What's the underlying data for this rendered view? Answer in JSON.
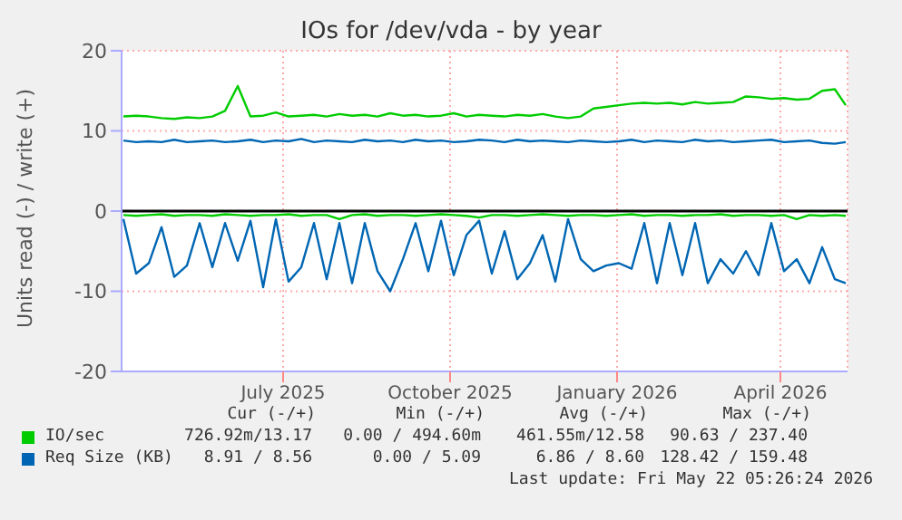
{
  "chart_data": {
    "type": "line",
    "title": "IOs for /dev/vda - by year",
    "ylabel": "Units read (-) / write (+)",
    "x": [
      "2025-04-18",
      "2025-04-25",
      "2025-05-02",
      "2025-05-09",
      "2025-05-16",
      "2025-05-23",
      "2025-05-30",
      "2025-06-06",
      "2025-06-13",
      "2025-06-20",
      "2025-06-27",
      "2025-07-04",
      "2025-07-11",
      "2025-07-18",
      "2025-07-25",
      "2025-08-01",
      "2025-08-08",
      "2025-08-15",
      "2025-08-22",
      "2025-08-29",
      "2025-09-05",
      "2025-09-12",
      "2025-09-19",
      "2025-09-26",
      "2025-10-03",
      "2025-10-10",
      "2025-10-17",
      "2025-10-24",
      "2025-10-31",
      "2025-11-07",
      "2025-11-14",
      "2025-11-21",
      "2025-11-28",
      "2025-12-05",
      "2025-12-12",
      "2025-12-19",
      "2025-12-26",
      "2026-01-02",
      "2026-01-09",
      "2026-01-16",
      "2026-01-23",
      "2026-01-30",
      "2026-02-06",
      "2026-02-13",
      "2026-02-20",
      "2026-02-27",
      "2026-03-06",
      "2026-03-13",
      "2026-03-20",
      "2026-03-27",
      "2026-04-03",
      "2026-04-10",
      "2026-04-17",
      "2026-04-24",
      "2026-05-01",
      "2026-05-08",
      "2026-05-15",
      "2026-05-21"
    ],
    "series": [
      {
        "name": "IO/sec",
        "color": "#00cc00",
        "values": [
          11.8,
          11.9,
          11.8,
          11.6,
          11.5,
          11.7,
          11.6,
          11.8,
          12.5,
          15.6,
          11.8,
          11.9,
          12.3,
          11.8,
          11.9,
          12.0,
          11.8,
          12.1,
          11.9,
          12.0,
          11.8,
          12.2,
          11.9,
          12.0,
          11.8,
          11.9,
          12.2,
          11.8,
          12.0,
          11.9,
          11.8,
          12.0,
          11.9,
          12.1,
          11.8,
          11.6,
          11.8,
          12.8,
          13.0,
          13.2,
          13.4,
          13.5,
          13.4,
          13.5,
          13.3,
          13.6,
          13.4,
          13.5,
          13.6,
          14.3,
          14.2,
          14.0,
          14.1,
          13.9,
          14.0,
          15.0,
          15.2,
          13.2
        ]
      },
      {
        "color": "#00cc00",
        "values": [
          -0.5,
          -0.6,
          -0.5,
          -0.4,
          -0.6,
          -0.5,
          -0.5,
          -0.6,
          -0.4,
          -0.5,
          -0.6,
          -0.5,
          -0.5,
          -0.4,
          -0.6,
          -0.5,
          -0.5,
          -1.0,
          -0.5,
          -0.4,
          -0.6,
          -0.5,
          -0.5,
          -0.6,
          -0.5,
          -0.4,
          -0.5,
          -0.6,
          -0.8,
          -0.5,
          -0.5,
          -0.6,
          -0.5,
          -0.4,
          -0.5,
          -0.6,
          -0.5,
          -0.5,
          -0.6,
          -0.5,
          -0.4,
          -0.6,
          -0.5,
          -0.5,
          -0.6,
          -0.5,
          -0.5,
          -0.4,
          -0.6,
          -0.5,
          -0.5,
          -0.6,
          -0.5,
          -1.0,
          -0.5,
          -0.6,
          -0.5,
          -0.6
        ]
      },
      {
        "name": "Req Size (KB)",
        "color": "#0066b3",
        "values": [
          8.8,
          8.6,
          8.7,
          8.6,
          8.9,
          8.6,
          8.7,
          8.8,
          8.6,
          8.7,
          8.9,
          8.6,
          8.8,
          8.7,
          9.0,
          8.6,
          8.8,
          8.7,
          8.6,
          8.9,
          8.7,
          8.8,
          8.6,
          8.9,
          8.7,
          8.8,
          8.6,
          8.7,
          8.9,
          8.8,
          8.6,
          8.9,
          8.7,
          8.8,
          8.7,
          8.6,
          8.8,
          8.7,
          8.6,
          8.7,
          8.9,
          8.6,
          8.8,
          8.7,
          8.6,
          8.9,
          8.7,
          8.8,
          8.6,
          8.7,
          8.8,
          8.9,
          8.6,
          8.7,
          8.8,
          8.5,
          8.4,
          8.6
        ]
      },
      {
        "color": "#0066b3",
        "values": [
          -1.0,
          -7.8,
          -6.5,
          -2.0,
          -8.2,
          -6.8,
          -1.5,
          -7.0,
          -1.5,
          -6.2,
          -1.2,
          -9.5,
          -1.0,
          -8.8,
          -7.0,
          -1.5,
          -8.5,
          -1.5,
          -9.0,
          -1.5,
          -7.5,
          -10.0,
          -6.0,
          -1.5,
          -7.5,
          -1.2,
          -8.0,
          -3.0,
          -1.2,
          -7.8,
          -2.5,
          -8.5,
          -6.5,
          -3.0,
          -8.8,
          -1.0,
          -6.0,
          -7.5,
          -6.8,
          -6.5,
          -7.2,
          -1.5,
          -9.0,
          -1.5,
          -8.0,
          -1.5,
          -9.0,
          -6.0,
          -7.8,
          -5.0,
          -8.0,
          -1.5,
          -7.5,
          -6.0,
          -9.0,
          -4.5,
          -8.5,
          -9.0
        ]
      }
    ],
    "xlim": [
      "2025-04-17",
      "2026-05-22"
    ],
    "xticks": [
      {
        "value": "2025-07-15",
        "label": "July 2025"
      },
      {
        "value": "2025-10-15",
        "label": "October 2025"
      },
      {
        "value": "2026-01-15",
        "label": "January 2026"
      },
      {
        "value": "2026-04-15",
        "label": "April 2026"
      }
    ],
    "ylim": [
      -20,
      20
    ],
    "yticks": [
      -20,
      -10,
      0,
      10,
      20
    ],
    "grid": true,
    "legend": "bottom left",
    "marker": "none",
    "line_style": "solid",
    "ref_lines": [
      {
        "axis": "y",
        "value": 0,
        "color": "#000000"
      }
    ],
    "annotations": [
      "Cur (-/+)",
      "Min (-/+)",
      "Avg (-/+)",
      "Max (-/+)",
      "726.92m/13.17",
      "0.00 / 494.60m",
      "461.55m/12.58",
      "90.63 / 237.40",
      "8.91 / 8.56",
      "0.00 / 5.09",
      "6.86 / 8.60",
      "128.42 / 159.48",
      "Last update: Fri May 22 05:26:24 2026"
    ]
  }
}
